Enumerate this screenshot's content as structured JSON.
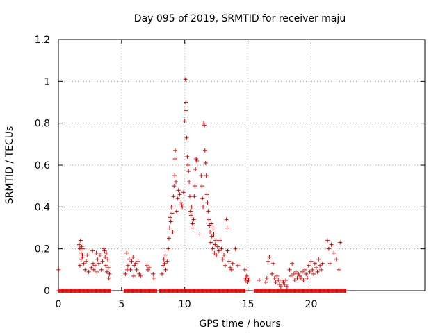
{
  "chart_data": {
    "type": "scatter",
    "title": "Day 095 of 2019, SRMTID for receiver maju",
    "xlabel": "GPS time / hours",
    "ylabel": "SRMTID / TECUs",
    "xlim": [
      0,
      29
    ],
    "ylim": [
      0,
      1.2
    ],
    "xticks": [
      0,
      5,
      10,
      15,
      20
    ],
    "xtick_labels": [
      "0",
      "5",
      "10",
      "15",
      "20"
    ],
    "yticks": [
      0,
      0.2,
      0.4,
      0.6,
      0.8,
      1,
      1.2
    ],
    "ytick_labels": [
      "0",
      "0.2",
      "0.4",
      "0.6",
      "0.8",
      "1",
      "1.2"
    ],
    "grid": true,
    "marker": "+",
    "marker_color": "#dd0000",
    "zero_bands": [
      [
        0,
        4.2
      ],
      [
        5.2,
        7.8
      ],
      [
        8.0,
        14.8
      ],
      [
        15.5,
        22.8
      ]
    ],
    "series": [
      {
        "name": "SRMTID",
        "points": [
          [
            0.02,
            0.1
          ],
          [
            1.65,
            0.22
          ],
          [
            1.7,
            0.2
          ],
          [
            1.75,
            0.24
          ],
          [
            1.8,
            0.18
          ],
          [
            1.85,
            0.21
          ],
          [
            1.9,
            0.16
          ],
          [
            1.95,
            0.2
          ],
          [
            2.0,
            0.13
          ],
          [
            1.7,
            0.12
          ],
          [
            1.8,
            0.15
          ],
          [
            1.9,
            0.17
          ],
          [
            2.1,
            0.1
          ],
          [
            2.2,
            0.14
          ],
          [
            2.3,
            0.17
          ],
          [
            2.4,
            0.09
          ],
          [
            2.6,
            0.11
          ],
          [
            2.7,
            0.19
          ],
          [
            2.8,
            0.1
          ],
          [
            2.9,
            0.12
          ],
          [
            3.0,
            0.18
          ],
          [
            3.1,
            0.15
          ],
          [
            3.2,
            0.13
          ],
          [
            3.3,
            0.17
          ],
          [
            3.4,
            0.1
          ],
          [
            3.5,
            0.14
          ],
          [
            3.6,
            0.2
          ],
          [
            3.65,
            0.19
          ],
          [
            3.7,
            0.16
          ],
          [
            3.75,
            0.12
          ],
          [
            3.8,
            0.18
          ],
          [
            3.85,
            0.09
          ],
          [
            3.9,
            0.15
          ],
          [
            3.95,
            0.11
          ],
          [
            4.0,
            0.06
          ],
          [
            4.05,
            0.08
          ],
          [
            2.75,
            0.13
          ],
          [
            3.05,
            0.09
          ],
          [
            5.3,
            0.08
          ],
          [
            5.4,
            0.18
          ],
          [
            5.5,
            0.12
          ],
          [
            5.6,
            0.15
          ],
          [
            5.7,
            0.1
          ],
          [
            5.8,
            0.14
          ],
          [
            5.9,
            0.16
          ],
          [
            6.0,
            0.12
          ],
          [
            6.1,
            0.13
          ],
          [
            6.2,
            0.1
          ],
          [
            6.3,
            0.14
          ],
          [
            6.4,
            0.08
          ],
          [
            6.5,
            0.07
          ],
          [
            7.0,
            0.12
          ],
          [
            7.1,
            0.1
          ],
          [
            7.2,
            0.11
          ],
          [
            7.5,
            0.08
          ],
          [
            7.55,
            0.06
          ],
          [
            5.45,
            0.1
          ],
          [
            5.95,
            0.07
          ],
          [
            8.2,
            0.08
          ],
          [
            8.3,
            0.12
          ],
          [
            8.35,
            0.15
          ],
          [
            8.4,
            0.13
          ],
          [
            8.45,
            0.17
          ],
          [
            8.5,
            0.1
          ],
          [
            8.6,
            0.14
          ],
          [
            8.7,
            0.2
          ],
          [
            8.75,
            0.25
          ],
          [
            8.8,
            0.3
          ],
          [
            8.85,
            0.35
          ],
          [
            8.9,
            0.33
          ],
          [
            8.95,
            0.4
          ],
          [
            9.0,
            0.37
          ],
          [
            9.05,
            0.28
          ],
          [
            9.1,
            0.45
          ],
          [
            9.15,
            0.5
          ],
          [
            9.2,
            0.55
          ],
          [
            9.22,
            0.63
          ],
          [
            9.25,
            0.67
          ],
          [
            9.3,
            0.52
          ],
          [
            9.35,
            0.38
          ],
          [
            9.45,
            0.44
          ],
          [
            9.5,
            0.48
          ],
          [
            9.6,
            0.46
          ],
          [
            9.7,
            0.42
          ],
          [
            9.75,
            0.41
          ],
          [
            9.8,
            0.4
          ],
          [
            9.9,
            0.47
          ],
          [
            10.0,
            0.81
          ],
          [
            10.05,
            1.01
          ],
          [
            10.08,
            0.9
          ],
          [
            10.1,
            0.86
          ],
          [
            10.15,
            0.73
          ],
          [
            10.2,
            0.64
          ],
          [
            10.25,
            0.6
          ],
          [
            10.3,
            0.57
          ],
          [
            10.35,
            0.52
          ],
          [
            10.4,
            0.45
          ],
          [
            10.45,
            0.38
          ],
          [
            10.5,
            0.36
          ],
          [
            10.55,
            0.4
          ],
          [
            10.6,
            0.32
          ],
          [
            10.65,
            0.3
          ],
          [
            10.7,
            0.34
          ],
          [
            10.75,
            0.45
          ],
          [
            10.8,
            0.5
          ],
          [
            10.85,
            0.58
          ],
          [
            10.9,
            0.63
          ],
          [
            10.95,
            0.62
          ],
          [
            11.2,
            0.27
          ],
          [
            11.3,
            0.55
          ],
          [
            11.35,
            0.5
          ],
          [
            11.4,
            0.44
          ],
          [
            11.45,
            0.4
          ],
          [
            11.5,
            0.8
          ],
          [
            11.55,
            0.79
          ],
          [
            11.6,
            0.67
          ],
          [
            11.65,
            0.61
          ],
          [
            11.7,
            0.55
          ],
          [
            11.75,
            0.46
          ],
          [
            11.8,
            0.42
          ],
          [
            11.85,
            0.38
          ],
          [
            11.9,
            0.34
          ],
          [
            11.95,
            0.31
          ],
          [
            12.0,
            0.28
          ],
          [
            12.05,
            0.23
          ],
          [
            12.1,
            0.32
          ],
          [
            12.15,
            0.26
          ],
          [
            12.2,
            0.2
          ],
          [
            12.25,
            0.3
          ],
          [
            12.3,
            0.27
          ],
          [
            12.35,
            0.18
          ],
          [
            12.4,
            0.22
          ],
          [
            12.45,
            0.24
          ],
          [
            12.5,
            0.17
          ],
          [
            12.6,
            0.21
          ],
          [
            12.7,
            0.19
          ],
          [
            12.8,
            0.24
          ],
          [
            12.9,
            0.2
          ],
          [
            13.0,
            0.15
          ],
          [
            13.1,
            0.17
          ],
          [
            13.2,
            0.12
          ],
          [
            13.3,
            0.34
          ],
          [
            13.35,
            0.3
          ],
          [
            13.4,
            0.19
          ],
          [
            13.5,
            0.14
          ],
          [
            13.6,
            0.11
          ],
          [
            13.7,
            0.1
          ],
          [
            13.8,
            0.13
          ],
          [
            14.0,
            0.2
          ],
          [
            14.2,
            0.12
          ],
          [
            14.75,
            0.1
          ],
          [
            14.8,
            0.06
          ],
          [
            14.85,
            0.05
          ],
          [
            14.9,
            0.07
          ],
          [
            14.95,
            0.04
          ],
          [
            15.0,
            0.06
          ],
          [
            15.05,
            0.05
          ],
          [
            15.9,
            0.05
          ],
          [
            16.4,
            0.04
          ],
          [
            16.5,
            0.06
          ],
          [
            16.6,
            0.14
          ],
          [
            16.7,
            0.16
          ],
          [
            16.9,
            0.08
          ],
          [
            17.0,
            0.13
          ],
          [
            17.1,
            0.06
          ],
          [
            17.2,
            0.04
          ],
          [
            17.3,
            0.07
          ],
          [
            17.4,
            0.05
          ],
          [
            17.5,
            0.03
          ],
          [
            17.6,
            0.02
          ],
          [
            17.7,
            0.05
          ],
          [
            17.8,
            0.04
          ],
          [
            17.9,
            0.03
          ],
          [
            18.0,
            0.05
          ],
          [
            18.1,
            0.02
          ],
          [
            18.3,
            0.1
          ],
          [
            18.4,
            0.07
          ],
          [
            18.5,
            0.13
          ],
          [
            18.6,
            0.08
          ],
          [
            18.7,
            0.05
          ],
          [
            18.8,
            0.09
          ],
          [
            18.9,
            0.06
          ],
          [
            19.0,
            0.08
          ],
          [
            19.1,
            0.07
          ],
          [
            19.2,
            0.06
          ],
          [
            19.3,
            0.09
          ],
          [
            19.4,
            0.05
          ],
          [
            19.5,
            0.1
          ],
          [
            19.6,
            0.08
          ],
          [
            19.7,
            0.06
          ],
          [
            19.8,
            0.12
          ],
          [
            19.9,
            0.09
          ],
          [
            20.0,
            0.14
          ],
          [
            20.1,
            0.1
          ],
          [
            20.2,
            0.08
          ],
          [
            20.3,
            0.13
          ],
          [
            20.4,
            0.11
          ],
          [
            20.5,
            0.09
          ],
          [
            20.6,
            0.15
          ],
          [
            20.7,
            0.12
          ],
          [
            20.8,
            0.1
          ],
          [
            20.9,
            0.13
          ],
          [
            21.3,
            0.24
          ],
          [
            21.4,
            0.2
          ],
          [
            21.5,
            0.13
          ],
          [
            21.6,
            0.22
          ],
          [
            21.8,
            0.18
          ],
          [
            22.0,
            0.15
          ],
          [
            22.2,
            0.1
          ],
          [
            22.3,
            0.23
          ]
        ]
      }
    ]
  }
}
